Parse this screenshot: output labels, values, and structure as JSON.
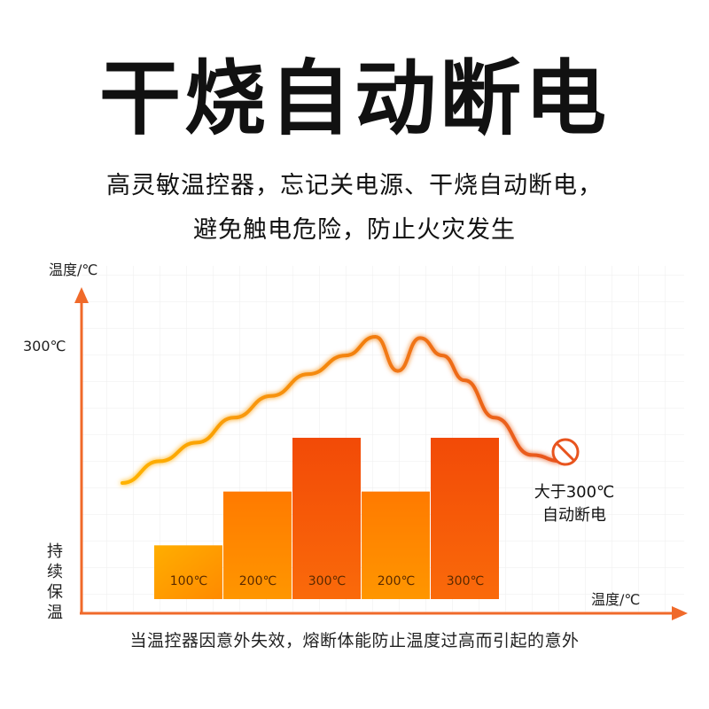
{
  "header": {
    "title": "干烧自动断电",
    "subtitle_line1": "高灵敏温控器，忘记关电源、干烧自动断电，",
    "subtitle_line2": "避免触电危险，防止火灾发生"
  },
  "footer": {
    "text": "当温控器因意外失效，熔断体能防止温度过高而引起的意外"
  },
  "colors": {
    "axis": "#f06a2a",
    "curve_start": "#ffb300",
    "curve_end": "#e8541e",
    "bar_low": "#ffa100",
    "bar_high": "#f04a08",
    "stop_icon": "#e8541e"
  },
  "chart_data": {
    "type": "bar",
    "ylabel": "温度/℃",
    "xlabel": "温度/℃",
    "y_tick_label": "300℃",
    "y_low_label": "持续保温",
    "categories": [
      "100℃",
      "200℃",
      "300℃",
      "200℃",
      "300℃"
    ],
    "values": [
      100,
      200,
      300,
      200,
      300
    ],
    "ylim": [
      0,
      450
    ],
    "curve": {
      "type": "line",
      "x": [
        0.0,
        0.5,
        1.0,
        1.5,
        2.0,
        2.5,
        3.0,
        3.4,
        3.7,
        4.0,
        4.3,
        4.6,
        5.0,
        5.5,
        5.9
      ],
      "y": [
        195,
        230,
        260,
        300,
        335,
        370,
        400,
        430,
        375,
        428,
        400,
        360,
        300,
        240,
        230
      ]
    },
    "cutoff_annotation": [
      "大于300℃",
      "自动断电"
    ],
    "grid": true
  }
}
